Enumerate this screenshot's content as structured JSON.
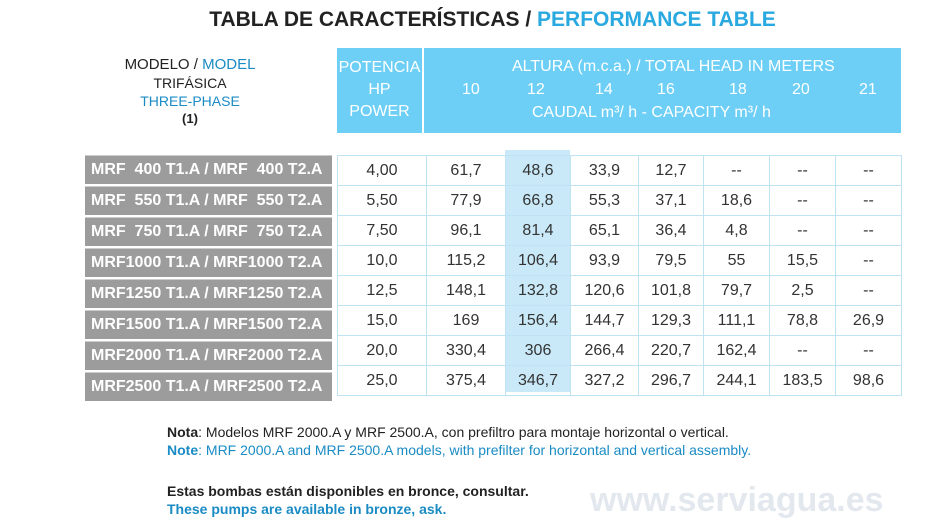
{
  "title": {
    "es": "TABLA DE CARACTERÍSTICAS /",
    "en": "PERFORMANCE TABLE"
  },
  "model_header": {
    "es": "MODELO /",
    "en": "MODEL",
    "trifasica": "TRIFÁSICA",
    "three_phase": "THREE-PHASE",
    "note_ref": "(1)"
  },
  "header": {
    "potencia": "POTENCIA",
    "hp": "HP",
    "power": "POWER",
    "altura": "ALTURA (m.c.a.) / TOTAL HEAD IN METERS",
    "caudal": "CAUDAL  m³/ h   -  CAPACITY m³/ h",
    "heads": [
      "10",
      "12",
      "14",
      "16",
      "18",
      "20",
      "21"
    ]
  },
  "rows": [
    {
      "model": "MRF  400 T1.A / MRF  400 T2.A",
      "power": "4,00",
      "values": [
        "61,7",
        "48,6",
        "33,9",
        "12,7",
        "--",
        "--",
        "--"
      ]
    },
    {
      "model": "MRF  550 T1.A / MRF  550 T2.A",
      "power": "5,50",
      "values": [
        "77,9",
        "66,8",
        "55,3",
        "37,1",
        "18,6",
        "--",
        "--"
      ]
    },
    {
      "model": "MRF  750 T1.A / MRF  750 T2.A",
      "power": "7,50",
      "values": [
        "96,1",
        "81,4",
        "65,1",
        "36,4",
        "4,8",
        "--",
        "--"
      ]
    },
    {
      "model": "MRF1000 T1.A / MRF1000 T2.A",
      "power": "10,0",
      "values": [
        "115,2",
        "106,4",
        "93,9",
        "79,5",
        "55",
        "15,5",
        "--"
      ]
    },
    {
      "model": "MRF1250 T1.A / MRF1250 T2.A",
      "power": "12,5",
      "values": [
        "148,1",
        "132,8",
        "120,6",
        "101,8",
        "79,7",
        "2,5",
        "--"
      ]
    },
    {
      "model": "MRF1500 T1.A / MRF1500 T2.A",
      "power": "15,0",
      "values": [
        "169",
        "156,4",
        "144,7",
        "129,3",
        "111,1",
        "78,8",
        "26,9"
      ]
    },
    {
      "model": "MRF2000 T1.A / MRF2000 T2.A",
      "power": "20,0",
      "values": [
        "330,4",
        "306",
        "266,4",
        "220,7",
        "162,4",
        "--",
        "--"
      ]
    },
    {
      "model": "MRF2500 T1.A / MRF2500 T2.A",
      "power": "25,0",
      "values": [
        "375,4",
        "346,7",
        "327,2",
        "296,7",
        "244,1",
        "183,5",
        "98,6"
      ]
    }
  ],
  "notes": {
    "nota_label": "Nota",
    "nota": ": Modelos MRF 2000.A y MRF 2500.A, con prefiltro para montaje horizontal o vertical.",
    "note_label": "Note",
    "note": ": MRF 2000.A and MRF 2500.A models, with prefilter for horizontal and vertical assembly.",
    "bronze_es": "Estas bombas están disponibles en bronce, consultar.",
    "bronze_en": "These pumps are available in bronze, ask."
  },
  "watermark": "www.serviagua.es"
}
